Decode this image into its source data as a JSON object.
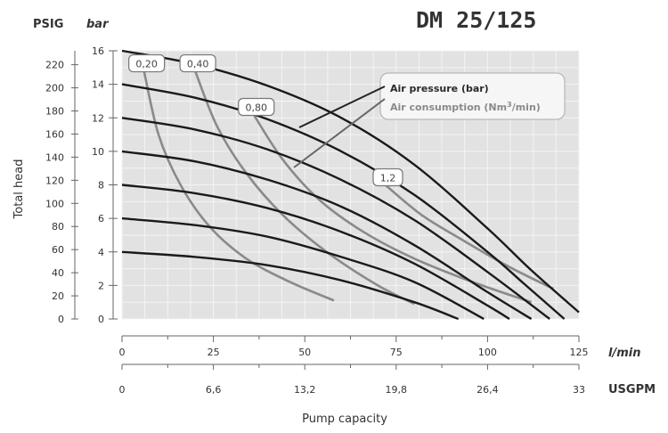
{
  "chart_data": {
    "type": "line",
    "title": "DM 25/125",
    "xlabel": "Pump capacity",
    "ylabel": "Total head",
    "x_unit_primary": "l/min",
    "x_unit_secondary": "USGPM",
    "y_unit_primary": "bar",
    "y_unit_secondary": "PSIG",
    "xlim": [
      0,
      125
    ],
    "ylim": [
      0,
      16
    ],
    "grid": true,
    "x_ticks": [
      "0",
      "25",
      "50",
      "75",
      "100",
      "125"
    ],
    "x2_ticks": [
      "0",
      "6,6",
      "13,2",
      "19,8",
      "26,4",
      "33"
    ],
    "y_ticks": [
      "0",
      "2",
      "4",
      "6",
      "8",
      "10",
      "12",
      "14",
      "16"
    ],
    "y2_ticks": [
      "0",
      "20",
      "40",
      "60",
      "80",
      "100",
      "120",
      "140",
      "160",
      "180",
      "200",
      "220"
    ],
    "legend": {
      "air_pressure": "Air pressure (bar)",
      "air_consumption_prefix": "Air consumption (Nm",
      "air_consumption_sup": "3",
      "air_consumption_suffix": "/min)"
    },
    "pressure_series": [
      {
        "x": [
          0,
          20,
          40,
          60,
          80,
          100,
          112,
          125
        ],
        "y": [
          16.0,
          15.2,
          13.9,
          12.0,
          9.2,
          5.4,
          2.9,
          0.4
        ]
      },
      {
        "x": [
          0,
          20,
          40,
          60,
          80,
          100,
          110,
          121
        ],
        "y": [
          14.0,
          13.2,
          11.9,
          10.0,
          7.4,
          4.0,
          2.1,
          0.0
        ]
      },
      {
        "x": [
          0,
          20,
          40,
          60,
          80,
          100,
          117
        ],
        "y": [
          12.0,
          11.3,
          10.1,
          8.3,
          5.9,
          2.8,
          0.0
        ]
      },
      {
        "x": [
          0,
          20,
          40,
          60,
          80,
          100,
          112
        ],
        "y": [
          10.0,
          9.4,
          8.3,
          6.7,
          4.4,
          1.6,
          0.0
        ]
      },
      {
        "x": [
          0,
          20,
          40,
          60,
          80,
          100,
          106
        ],
        "y": [
          8.0,
          7.5,
          6.6,
          5.2,
          3.3,
          0.8,
          0.0
        ]
      },
      {
        "x": [
          0,
          20,
          40,
          60,
          80,
          99
        ],
        "y": [
          6.0,
          5.6,
          4.9,
          3.7,
          2.2,
          0.0
        ]
      },
      {
        "x": [
          0,
          20,
          40,
          60,
          80,
          92
        ],
        "y": [
          4.0,
          3.7,
          3.2,
          2.3,
          1.0,
          0.0
        ]
      }
    ],
    "consumption_series": [
      {
        "label": "0,20",
        "x": [
          6,
          10,
          16,
          24,
          34,
          46,
          58
        ],
        "y": [
          14.8,
          11.0,
          8.0,
          5.5,
          3.6,
          2.2,
          1.1
        ]
      },
      {
        "label": "0,40",
        "x": [
          20,
          26,
          34,
          44,
          56,
          70,
          80
        ],
        "y": [
          14.8,
          11.5,
          8.7,
          6.2,
          4.0,
          2.0,
          0.9
        ]
      },
      {
        "label": "0,80",
        "x": [
          36,
          44,
          54,
          66,
          80,
          96,
          112
        ],
        "y": [
          12.2,
          9.5,
          7.1,
          5.2,
          3.6,
          2.2,
          1.0
        ]
      },
      {
        "label": "1,2",
        "x": [
          72,
          82,
          94,
          106,
          118
        ],
        "y": [
          8.0,
          6.2,
          4.6,
          3.1,
          1.8
        ]
      }
    ]
  }
}
